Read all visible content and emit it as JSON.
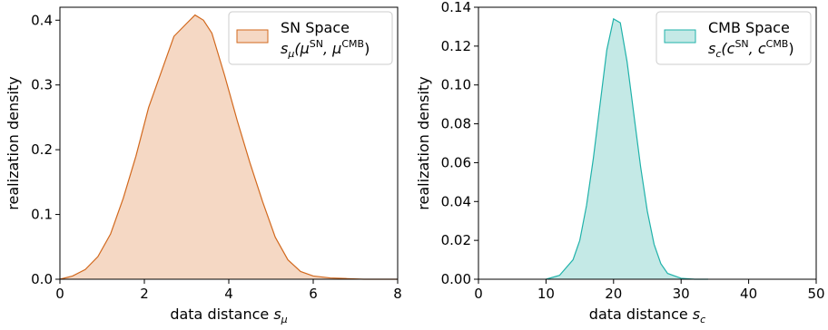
{
  "chart_data": [
    {
      "type": "area",
      "xlabel_text": "data distance ",
      "xlabel_var": "s",
      "xlabel_sub": "μ",
      "ylabel": "realization density",
      "xlim": [
        0,
        8
      ],
      "ylim": [
        0,
        0.42
      ],
      "xticks": [
        "0",
        "2",
        "4",
        "6",
        "8"
      ],
      "yticks": [
        "0.0",
        "0.1",
        "0.2",
        "0.3",
        "0.4"
      ],
      "grid": false,
      "legend_placement": "top-right",
      "colors": {
        "fill": "#f5d8c4",
        "stroke": "#d2691e"
      },
      "series": [
        {
          "legend_line1": "SN Space",
          "legend_line2_var": "s",
          "legend_line2_sub": "μ",
          "legend_line2_open": "(μ",
          "legend_line2_sup1": "SN",
          "legend_line2_mid": ", μ",
          "legend_line2_sup2": "CMB",
          "legend_line2_close": ")",
          "x": [
            0.0,
            0.3,
            0.6,
            0.9,
            1.2,
            1.5,
            1.8,
            2.1,
            2.4,
            2.7,
            3.0,
            3.2,
            3.4,
            3.6,
            3.9,
            4.2,
            4.5,
            4.8,
            5.1,
            5.4,
            5.7,
            6.0,
            6.4,
            6.8,
            7.2,
            7.6,
            8.0
          ],
          "values": [
            0.0,
            0.005,
            0.015,
            0.035,
            0.07,
            0.125,
            0.19,
            0.265,
            0.32,
            0.375,
            0.395,
            0.408,
            0.4,
            0.38,
            0.315,
            0.245,
            0.18,
            0.12,
            0.065,
            0.03,
            0.012,
            0.005,
            0.002,
            0.001,
            0.0,
            0.0,
            0.0
          ]
        }
      ]
    },
    {
      "type": "area",
      "xlabel_text": "data distance ",
      "xlabel_var": "s",
      "xlabel_sub": "c",
      "ylabel": "realization density",
      "xlim": [
        0,
        50
      ],
      "ylim": [
        0,
        0.14
      ],
      "xticks": [
        "0",
        "10",
        "20",
        "30",
        "40",
        "50"
      ],
      "yticks": [
        "0.00",
        "0.02",
        "0.04",
        "0.06",
        "0.08",
        "0.10",
        "0.12",
        "0.14"
      ],
      "grid": false,
      "legend_placement": "top-right",
      "colors": {
        "fill": "#c4e9e6",
        "stroke": "#20b2aa"
      },
      "series": [
        {
          "legend_line1": "CMB Space",
          "legend_line2_var": "s",
          "legend_line2_sub": "c",
          "legend_line2_open": "(c",
          "legend_line2_sup1": "SN",
          "legend_line2_mid": ", c",
          "legend_line2_sup2": "CMB",
          "legend_line2_close": ")",
          "x": [
            10,
            12,
            14,
            15,
            16,
            17,
            18,
            19,
            20,
            21,
            22,
            23,
            24,
            25,
            26,
            27,
            28,
            30,
            32,
            34
          ],
          "values": [
            0.0,
            0.002,
            0.01,
            0.02,
            0.038,
            0.062,
            0.09,
            0.118,
            0.134,
            0.132,
            0.112,
            0.085,
            0.058,
            0.035,
            0.018,
            0.008,
            0.003,
            0.0005,
            0.0,
            0.0
          ]
        }
      ]
    }
  ]
}
